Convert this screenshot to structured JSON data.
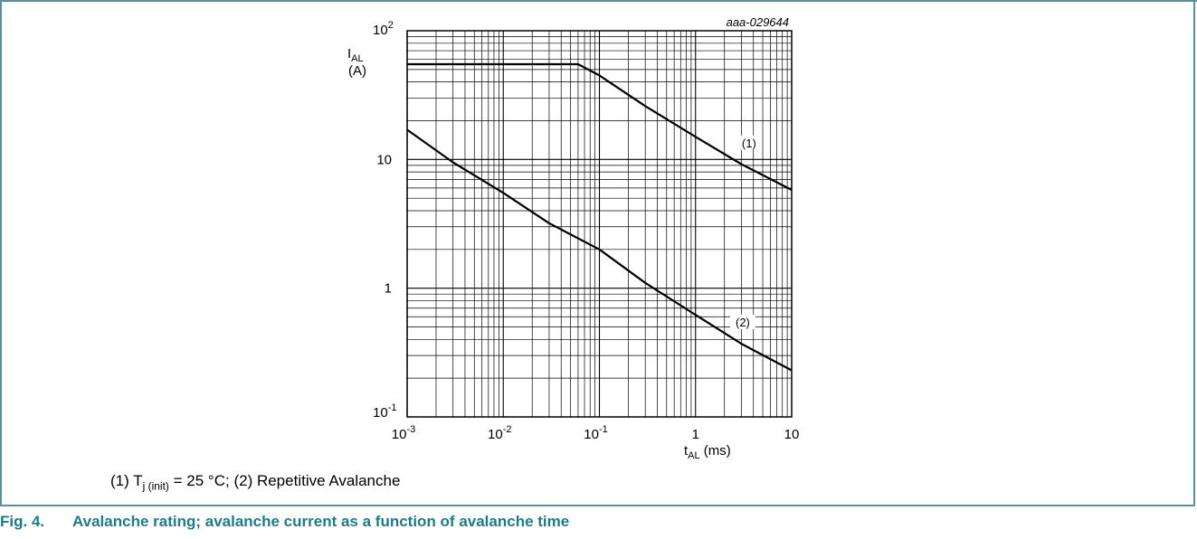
{
  "figure": {
    "id_label": "aaa-029644",
    "footnote": {
      "part1": "(1) T",
      "sub": "j (init)",
      "part2": " = 25 °C; (2) Repetitive Avalanche"
    },
    "caption_number": "Fig. 4.",
    "caption_text": "Avalanche rating; avalanche current as a function of avalanche time",
    "caption_color": "#1f7a87",
    "frame_color": "#5a8f9c"
  },
  "chart_data": {
    "type": "line",
    "x_scale": "log",
    "y_scale": "log",
    "xlim": [
      0.001,
      10
    ],
    "ylim": [
      0.1,
      100
    ],
    "grid": true,
    "xlabel": "t_AL (ms)",
    "ylabel": "I_AL (A)",
    "x_ticks": [
      {
        "value": 0.001,
        "base": "10",
        "exp": "-3"
      },
      {
        "value": 0.01,
        "base": "10",
        "exp": "-2"
      },
      {
        "value": 0.1,
        "base": "10",
        "exp": "-1"
      },
      {
        "value": 1,
        "base": "1",
        "exp": ""
      },
      {
        "value": 10,
        "base": "10",
        "exp": ""
      }
    ],
    "y_ticks": [
      {
        "value": 0.1,
        "base": "10",
        "exp": "-1"
      },
      {
        "value": 1,
        "base": "1",
        "exp": ""
      },
      {
        "value": 10,
        "base": "10",
        "exp": ""
      },
      {
        "value": 100,
        "base": "10",
        "exp": "2"
      }
    ],
    "series": [
      {
        "name": "(1)",
        "x": [
          0.001,
          0.01,
          0.06,
          0.1,
          0.3,
          1,
          3,
          10
        ],
        "y": [
          55,
          55,
          55,
          45,
          26,
          15,
          9.2,
          5.8
        ]
      },
      {
        "name": "(2)",
        "x": [
          0.001,
          0.003,
          0.01,
          0.03,
          0.1,
          0.3,
          1,
          3,
          10
        ],
        "y": [
          17,
          9.5,
          5.5,
          3.2,
          2.0,
          1.1,
          0.62,
          0.37,
          0.23
        ]
      }
    ]
  }
}
